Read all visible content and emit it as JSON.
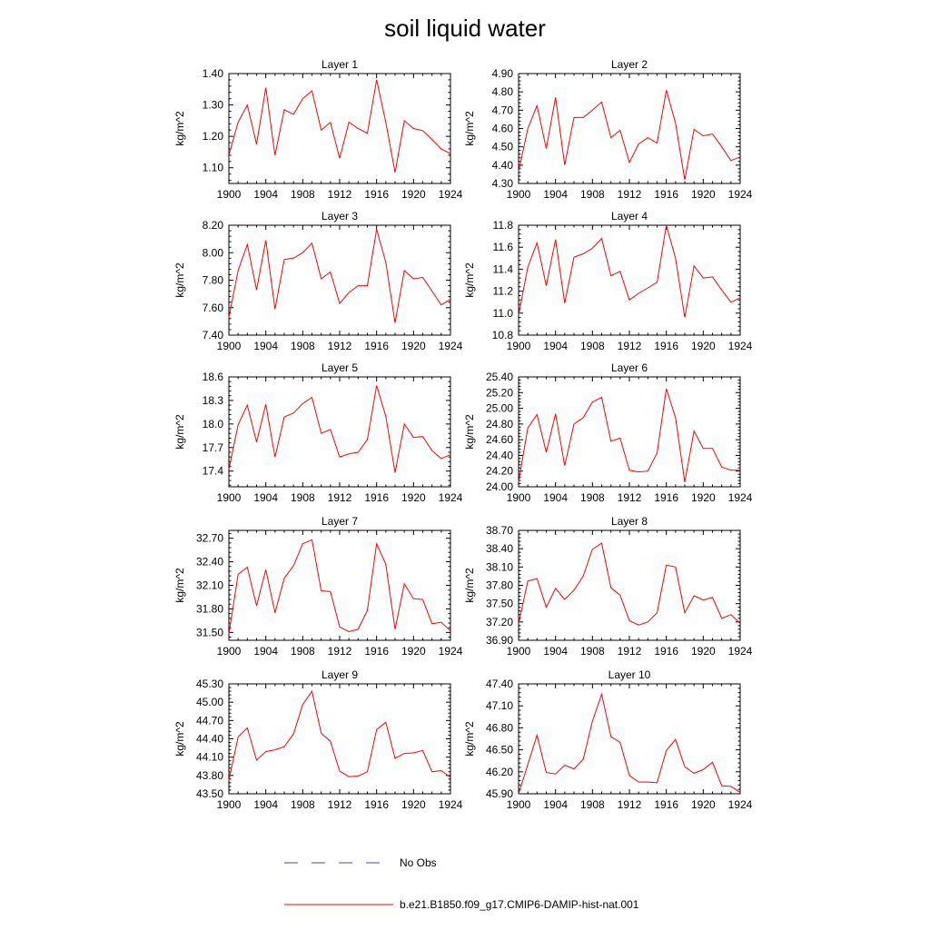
{
  "title": "soil liquid water",
  "legend": [
    {
      "label": "No Obs",
      "color": "#4a4aa8",
      "style": "dashed"
    },
    {
      "label": "b.e21.B1850.f09_g17.CMIP6-DAMIP-hist-nat.001",
      "color": "#ff0000",
      "style": "solid"
    }
  ],
  "chart_data": [
    {
      "type": "line",
      "title": "Layer 1",
      "ylabel": "kg/m^2",
      "x": [
        1900,
        1901,
        1902,
        1903,
        1904,
        1905,
        1906,
        1907,
        1908,
        1909,
        1910,
        1911,
        1912,
        1913,
        1914,
        1915,
        1916,
        1917,
        1918,
        1919,
        1920,
        1921,
        1922,
        1923,
        1924
      ],
      "xticks": [
        1900,
        1904,
        1908,
        1912,
        1916,
        1920,
        1924
      ],
      "xlim": [
        1900,
        1924
      ],
      "ylim": [
        1.05,
        1.4
      ],
      "yticks": [
        1.1,
        1.2,
        1.3,
        1.4
      ],
      "ytick_labels": [
        "1.10",
        "1.20",
        "1.30",
        "1.40"
      ],
      "series": [
        {
          "name": "b.e21.B1850.f09_g17.CMIP6-DAMIP-hist-nat.001",
          "values": [
            1.14,
            1.245,
            1.3,
            1.175,
            1.355,
            1.14,
            1.285,
            1.27,
            1.32,
            1.345,
            1.22,
            1.245,
            1.13,
            1.245,
            1.225,
            1.21,
            1.38,
            1.245,
            1.085,
            1.25,
            1.225,
            1.218,
            1.19,
            1.16,
            1.145
          ]
        }
      ]
    },
    {
      "type": "line",
      "title": "Layer 2",
      "ylabel": "kg/m^2",
      "x": [
        1900,
        1901,
        1902,
        1903,
        1904,
        1905,
        1906,
        1907,
        1908,
        1909,
        1910,
        1911,
        1912,
        1913,
        1914,
        1915,
        1916,
        1917,
        1918,
        1919,
        1920,
        1921,
        1922,
        1923,
        1924
      ],
      "xticks": [
        1900,
        1904,
        1908,
        1912,
        1916,
        1920,
        1924
      ],
      "xlim": [
        1900,
        1924
      ],
      "ylim": [
        4.3,
        4.9
      ],
      "yticks": [
        4.3,
        4.4,
        4.5,
        4.6,
        4.7,
        4.8,
        4.9
      ],
      "ytick_labels": [
        "4.30",
        "4.40",
        "4.50",
        "4.60",
        "4.70",
        "4.80",
        "4.90"
      ],
      "series": [
        {
          "name": "b.e21.B1850.f09_g17.CMIP6-DAMIP-hist-nat.001",
          "values": [
            4.365,
            4.6,
            4.725,
            4.49,
            4.77,
            4.4,
            4.66,
            4.66,
            4.7,
            4.745,
            4.55,
            4.59,
            4.415,
            4.515,
            4.55,
            4.52,
            4.81,
            4.63,
            4.32,
            4.595,
            4.56,
            4.57,
            4.5,
            4.425,
            4.445
          ]
        }
      ]
    },
    {
      "type": "line",
      "title": "Layer 3",
      "ylabel": "kg/m^2",
      "x": [
        1900,
        1901,
        1902,
        1903,
        1904,
        1905,
        1906,
        1907,
        1908,
        1909,
        1910,
        1911,
        1912,
        1913,
        1914,
        1915,
        1916,
        1917,
        1918,
        1919,
        1920,
        1921,
        1922,
        1923,
        1924
      ],
      "xticks": [
        1900,
        1904,
        1908,
        1912,
        1916,
        1920,
        1924
      ],
      "xlim": [
        1900,
        1924
      ],
      "ylim": [
        7.4,
        8.2
      ],
      "yticks": [
        7.4,
        7.6,
        7.8,
        8.0,
        8.2
      ],
      "ytick_labels": [
        "7.40",
        "7.60",
        "7.80",
        "8.00",
        "8.20"
      ],
      "series": [
        {
          "name": "b.e21.B1850.f09_g17.CMIP6-DAMIP-hist-nat.001",
          "values": [
            7.53,
            7.87,
            8.06,
            7.73,
            8.09,
            7.59,
            7.95,
            7.96,
            8.0,
            8.07,
            7.81,
            7.86,
            7.63,
            7.71,
            7.76,
            7.76,
            8.17,
            7.93,
            7.49,
            7.87,
            7.81,
            7.82,
            7.72,
            7.62,
            7.66
          ]
        }
      ]
    },
    {
      "type": "line",
      "title": "Layer 4",
      "ylabel": "kg/m^2",
      "x": [
        1900,
        1901,
        1902,
        1903,
        1904,
        1905,
        1906,
        1907,
        1908,
        1909,
        1910,
        1911,
        1912,
        1913,
        1914,
        1915,
        1916,
        1917,
        1918,
        1919,
        1920,
        1921,
        1922,
        1923,
        1924
      ],
      "xticks": [
        1900,
        1904,
        1908,
        1912,
        1916,
        1920,
        1924
      ],
      "xlim": [
        1900,
        1924
      ],
      "ylim": [
        10.8,
        11.8
      ],
      "yticks": [
        10.8,
        11.0,
        11.2,
        11.4,
        11.6,
        11.8
      ],
      "ytick_labels": [
        "10.8",
        "11.0",
        "11.2",
        "11.4",
        "11.6",
        "11.8"
      ],
      "series": [
        {
          "name": "b.e21.B1850.f09_g17.CMIP6-DAMIP-hist-nat.001",
          "values": [
            10.98,
            11.42,
            11.64,
            11.25,
            11.67,
            11.09,
            11.51,
            11.54,
            11.59,
            11.68,
            11.34,
            11.38,
            11.12,
            11.18,
            11.23,
            11.28,
            11.8,
            11.5,
            10.96,
            11.43,
            11.32,
            11.33,
            11.21,
            11.1,
            11.14
          ]
        }
      ]
    },
    {
      "type": "line",
      "title": "Layer 5",
      "ylabel": "kg/m^2",
      "x": [
        1900,
        1901,
        1902,
        1903,
        1904,
        1905,
        1906,
        1907,
        1908,
        1909,
        1910,
        1911,
        1912,
        1913,
        1914,
        1915,
        1916,
        1917,
        1918,
        1919,
        1920,
        1921,
        1922,
        1923,
        1924
      ],
      "xticks": [
        1900,
        1904,
        1908,
        1912,
        1916,
        1920,
        1924
      ],
      "xlim": [
        1900,
        1924
      ],
      "ylim": [
        17.2,
        18.6
      ],
      "yticks": [
        17.4,
        17.7,
        18.0,
        18.3,
        18.6
      ],
      "ytick_labels": [
        "17.4",
        "17.7",
        "18.0",
        "18.3",
        "18.6"
      ],
      "series": [
        {
          "name": "b.e21.B1850.f09_g17.CMIP6-DAMIP-hist-nat.001",
          "values": [
            17.42,
            17.99,
            18.24,
            17.77,
            18.25,
            17.58,
            18.09,
            18.14,
            18.26,
            18.34,
            17.88,
            17.93,
            17.58,
            17.62,
            17.64,
            17.8,
            18.49,
            18.1,
            17.38,
            18.0,
            17.83,
            17.84,
            17.66,
            17.56,
            17.61
          ]
        }
      ]
    },
    {
      "type": "line",
      "title": "Layer 6",
      "ylabel": "kg/m^2",
      "x": [
        1900,
        1901,
        1902,
        1903,
        1904,
        1905,
        1906,
        1907,
        1908,
        1909,
        1910,
        1911,
        1912,
        1913,
        1914,
        1915,
        1916,
        1917,
        1918,
        1919,
        1920,
        1921,
        1922,
        1923,
        1924
      ],
      "xticks": [
        1900,
        1904,
        1908,
        1912,
        1916,
        1920,
        1924
      ],
      "xlim": [
        1900,
        1924
      ],
      "ylim": [
        24.0,
        25.4
      ],
      "yticks": [
        24.0,
        24.2,
        24.4,
        24.6,
        24.8,
        25.0,
        25.2,
        25.4
      ],
      "ytick_labels": [
        "24.00",
        "24.20",
        "24.40",
        "24.60",
        "24.80",
        "25.00",
        "25.20",
        "25.40"
      ],
      "series": [
        {
          "name": "b.e21.B1850.f09_g17.CMIP6-DAMIP-hist-nat.001",
          "values": [
            24.06,
            24.75,
            24.92,
            24.44,
            24.93,
            24.27,
            24.8,
            24.88,
            25.08,
            25.14,
            24.58,
            24.62,
            24.21,
            24.19,
            24.2,
            24.43,
            25.25,
            24.88,
            24.06,
            24.71,
            24.49,
            24.49,
            24.25,
            24.21,
            24.21
          ]
        }
      ]
    },
    {
      "type": "line",
      "title": "Layer 7",
      "ylabel": "kg/m^2",
      "x": [
        1900,
        1901,
        1902,
        1903,
        1904,
        1905,
        1906,
        1907,
        1908,
        1909,
        1910,
        1911,
        1912,
        1913,
        1914,
        1915,
        1916,
        1917,
        1918,
        1919,
        1920,
        1921,
        1922,
        1923,
        1924
      ],
      "xticks": [
        1900,
        1904,
        1908,
        1912,
        1916,
        1920,
        1924
      ],
      "xlim": [
        1900,
        1924
      ],
      "ylim": [
        31.4,
        32.8
      ],
      "yticks": [
        31.5,
        31.8,
        32.1,
        32.4,
        32.7
      ],
      "ytick_labels": [
        "31.50",
        "31.80",
        "32.10",
        "32.40",
        "32.70"
      ],
      "series": [
        {
          "name": "b.e21.B1850.f09_g17.CMIP6-DAMIP-hist-nat.001",
          "values": [
            31.48,
            32.24,
            32.33,
            31.84,
            32.3,
            31.75,
            32.19,
            32.35,
            32.63,
            32.68,
            32.03,
            32.02,
            31.57,
            31.51,
            31.54,
            31.78,
            32.63,
            32.37,
            31.54,
            32.12,
            31.93,
            31.92,
            31.61,
            31.63,
            31.52
          ]
        }
      ]
    },
    {
      "type": "line",
      "title": "Layer 8",
      "ylabel": "kg/m^2",
      "x": [
        1900,
        1901,
        1902,
        1903,
        1904,
        1905,
        1906,
        1907,
        1908,
        1909,
        1910,
        1911,
        1912,
        1913,
        1914,
        1915,
        1916,
        1917,
        1918,
        1919,
        1920,
        1921,
        1922,
        1923,
        1924
      ],
      "xticks": [
        1900,
        1904,
        1908,
        1912,
        1916,
        1920,
        1924
      ],
      "xlim": [
        1900,
        1924
      ],
      "ylim": [
        36.9,
        38.7
      ],
      "yticks": [
        36.9,
        37.2,
        37.5,
        37.8,
        38.1,
        38.4,
        38.7
      ],
      "ytick_labels": [
        "36.90",
        "37.20",
        "37.50",
        "37.80",
        "38.10",
        "38.40",
        "38.70"
      ],
      "series": [
        {
          "name": "b.e21.B1850.f09_g17.CMIP6-DAMIP-hist-nat.001",
          "values": [
            37.17,
            37.87,
            37.91,
            37.44,
            37.75,
            37.57,
            37.72,
            37.95,
            38.39,
            38.49,
            37.76,
            37.64,
            37.22,
            37.15,
            37.2,
            37.35,
            38.13,
            38.1,
            37.35,
            37.63,
            37.56,
            37.6,
            37.26,
            37.32,
            37.18
          ]
        }
      ]
    },
    {
      "type": "line",
      "title": "Layer 9",
      "ylabel": "kg/m^2",
      "x": [
        1900,
        1901,
        1902,
        1903,
        1904,
        1905,
        1906,
        1907,
        1908,
        1909,
        1910,
        1911,
        1912,
        1913,
        1914,
        1915,
        1916,
        1917,
        1918,
        1919,
        1920,
        1921,
        1922,
        1923,
        1924
      ],
      "xticks": [
        1900,
        1904,
        1908,
        1912,
        1916,
        1920,
        1924
      ],
      "xlim": [
        1900,
        1924
      ],
      "ylim": [
        43.5,
        45.3
      ],
      "yticks": [
        43.5,
        43.8,
        44.1,
        44.4,
        44.7,
        45.0,
        45.3
      ],
      "ytick_labels": [
        "43.50",
        "43.80",
        "44.10",
        "44.40",
        "44.70",
        "45.00",
        "45.30"
      ],
      "series": [
        {
          "name": "b.e21.B1850.f09_g17.CMIP6-DAMIP-hist-nat.001",
          "values": [
            43.72,
            44.43,
            44.58,
            44.05,
            44.19,
            44.22,
            44.27,
            44.48,
            44.96,
            45.18,
            44.49,
            44.36,
            43.87,
            43.78,
            43.79,
            43.86,
            44.55,
            44.67,
            44.08,
            44.16,
            44.17,
            44.21,
            43.86,
            43.88,
            43.77
          ]
        }
      ]
    },
    {
      "type": "line",
      "title": "Layer 10",
      "ylabel": "kg/m^2",
      "x": [
        1900,
        1901,
        1902,
        1903,
        1904,
        1905,
        1906,
        1907,
        1908,
        1909,
        1910,
        1911,
        1912,
        1913,
        1914,
        1915,
        1916,
        1917,
        1918,
        1919,
        1920,
        1921,
        1922,
        1923,
        1924
      ],
      "xticks": [
        1900,
        1904,
        1908,
        1912,
        1916,
        1920,
        1924
      ],
      "xlim": [
        1900,
        1924
      ],
      "ylim": [
        45.9,
        47.4
      ],
      "yticks": [
        45.9,
        46.2,
        46.5,
        46.8,
        47.1,
        47.4
      ],
      "ytick_labels": [
        "45.90",
        "46.20",
        "46.50",
        "46.80",
        "47.10",
        "47.40"
      ],
      "series": [
        {
          "name": "b.e21.B1850.f09_g17.CMIP6-DAMIP-hist-nat.001",
          "values": [
            45.9,
            46.3,
            46.7,
            46.19,
            46.17,
            46.29,
            46.24,
            46.37,
            46.89,
            47.26,
            46.68,
            46.6,
            46.15,
            46.06,
            46.06,
            46.05,
            46.49,
            46.64,
            46.27,
            46.18,
            46.23,
            46.33,
            46.01,
            46.0,
            45.92
          ]
        }
      ]
    }
  ]
}
